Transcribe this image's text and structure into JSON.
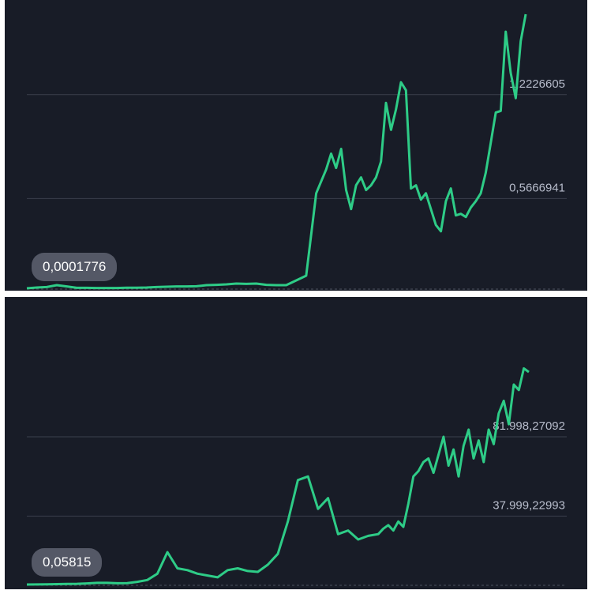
{
  "panels": [
    {
      "grid_labels": [
        "1,2226605",
        "0,5666941"
      ],
      "badge": "0,0001776"
    },
    {
      "grid_labels": [
        "81.998,27092",
        "37.999,22993"
      ],
      "badge": "0,05815"
    }
  ],
  "colors": {
    "background": "#181c27",
    "line": "#2ecc87",
    "grid": "#3a3f4c",
    "label": "#b7bccb",
    "badge_bg": "#545866"
  },
  "chart_data": [
    {
      "type": "line",
      "title": "",
      "grid": true,
      "ylim": [
        0,
        1.73
      ],
      "gridlines": [
        1.2226605,
        0.5666941
      ],
      "x": [
        0,
        2,
        4,
        6,
        8,
        10,
        12,
        14,
        16,
        18,
        20,
        22,
        24,
        26,
        28,
        30,
        32,
        34,
        36,
        38,
        40,
        42,
        44,
        46,
        48,
        50,
        52,
        54,
        56,
        58,
        60,
        61,
        62,
        63,
        64,
        65,
        66,
        67,
        68,
        69,
        70,
        71,
        72,
        73,
        74,
        75,
        76,
        77,
        78,
        79,
        80,
        81,
        82,
        83,
        84,
        85,
        86,
        87,
        88,
        89,
        90,
        91,
        92,
        93,
        94,
        95,
        96,
        97,
        98,
        99,
        100
      ],
      "y": [
        0.0002,
        0.005,
        0.008,
        0.02,
        0.012,
        0.003,
        0.003,
        0.002,
        0.002,
        0.002,
        0.004,
        0.004,
        0.005,
        0.008,
        0.01,
        0.012,
        0.012,
        0.013,
        0.02,
        0.022,
        0.025,
        0.03,
        0.028,
        0.03,
        0.022,
        0.02,
        0.02,
        0.05,
        0.08,
        0.6,
        0.75,
        0.85,
        0.76,
        0.88,
        0.62,
        0.5,
        0.65,
        0.7,
        0.62,
        0.65,
        0.7,
        0.8,
        1.17,
        1.0,
        1.13,
        1.3,
        1.25,
        0.63,
        0.65,
        0.56,
        0.6,
        0.5,
        0.4,
        0.36,
        0.55,
        0.63,
        0.46,
        0.47,
        0.45,
        0.51,
        0.55,
        0.6,
        0.73,
        0.92,
        1.11,
        1.12,
        1.62,
        1.36,
        1.2,
        1.56,
        1.73
      ]
    },
    {
      "type": "line",
      "title": "",
      "grid": true,
      "ylim": [
        0,
        150000
      ],
      "gridlines": [
        81998.27092,
        37999.22993
      ],
      "x": [
        0,
        2,
        4,
        6,
        8,
        10,
        12,
        14,
        16,
        18,
        20,
        22,
        24,
        26,
        28,
        30,
        32,
        34,
        36,
        38,
        40,
        42,
        44,
        46,
        48,
        50,
        52,
        54,
        56,
        58,
        60,
        62,
        64,
        66,
        68,
        70,
        71,
        72,
        73,
        74,
        75,
        76,
        77,
        78,
        79,
        80,
        81,
        82,
        83,
        84,
        85,
        86,
        87,
        88,
        89,
        90,
        91,
        92,
        93,
        94,
        95,
        96,
        97,
        98,
        99,
        100
      ],
      "y": [
        0.05815,
        50,
        100,
        200,
        300,
        400,
        600,
        900,
        900,
        700,
        800,
        1500,
        2500,
        6000,
        18000,
        9000,
        8000,
        6000,
        5000,
        4000,
        8000,
        9000,
        7500,
        7000,
        11000,
        17000,
        35000,
        58000,
        60000,
        42000,
        48000,
        28000,
        30000,
        25000,
        27000,
        28000,
        31000,
        33000,
        30000,
        35000,
        32000,
        45000,
        60000,
        63000,
        68000,
        70000,
        62000,
        72000,
        82000,
        66000,
        75000,
        60000,
        77000,
        86000,
        70000,
        80000,
        68000,
        86000,
        78000,
        95000,
        102000,
        89000,
        111000,
        108000,
        120000,
        118000
      ]
    }
  ]
}
